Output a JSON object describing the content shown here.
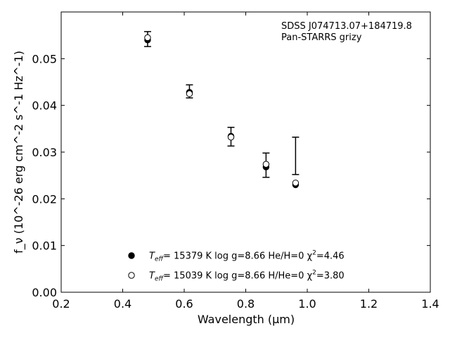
{
  "chart_data": {
    "type": "scatter",
    "title": "",
    "xlabel": "Wavelength (μm)",
    "ylabel": "f_ν (10^-26 erg cm^-2 s^-1 Hz^-1)",
    "xlim": [
      0.2,
      1.4
    ],
    "ylim": [
      0.0,
      0.06
    ],
    "x_ticks": [
      0.2,
      0.4,
      0.6,
      0.8,
      1.0,
      1.2,
      1.4
    ],
    "x_tick_labels": [
      "0.2",
      "0.4",
      "0.6",
      "0.8",
      "1.0",
      "1.2",
      "1.4"
    ],
    "y_ticks": [
      0.0,
      0.01,
      0.02,
      0.03,
      0.04,
      0.05
    ],
    "y_tick_labels": [
      "0.00",
      "0.01",
      "0.02",
      "0.03",
      "0.04",
      "0.05"
    ],
    "grid": false,
    "annotation": {
      "line1": "SDSS J074713.07+184719.8",
      "line2": "Pan-STARRS grizy"
    },
    "observed": {
      "x": [
        0.481,
        0.617,
        0.752,
        0.866,
        0.962
      ],
      "y": [
        0.0542,
        0.043,
        0.0333,
        0.0272,
        0.0292
      ],
      "yerr": [
        0.0016,
        0.0014,
        0.002,
        0.0026,
        0.004
      ],
      "color": "#000000"
    },
    "series": [
      {
        "legend": {
          "prefix": "T",
          "sub": "eff",
          "text": "= 15379 K  log g=8.66  He/H=0  χ",
          "sup": "2",
          "suffix": "=4.46"
        },
        "marker": "filled-circle",
        "x": [
          0.481,
          0.617,
          0.752,
          0.866,
          0.962
        ],
        "y": [
          0.054,
          0.0428,
          0.0334,
          0.0268,
          0.023
        ]
      },
      {
        "legend": {
          "prefix": "T",
          "sub": "eff",
          "text": "= 15039 K  log g=8.66  H/He=0  χ",
          "sup": "2",
          "suffix": "=3.80"
        },
        "marker": "open-circle",
        "x": [
          0.481,
          0.617,
          0.752,
          0.866,
          0.962
        ],
        "y": [
          0.0545,
          0.0425,
          0.0332,
          0.0274,
          0.0234
        ]
      }
    ],
    "legend_placement": "lower-center"
  }
}
